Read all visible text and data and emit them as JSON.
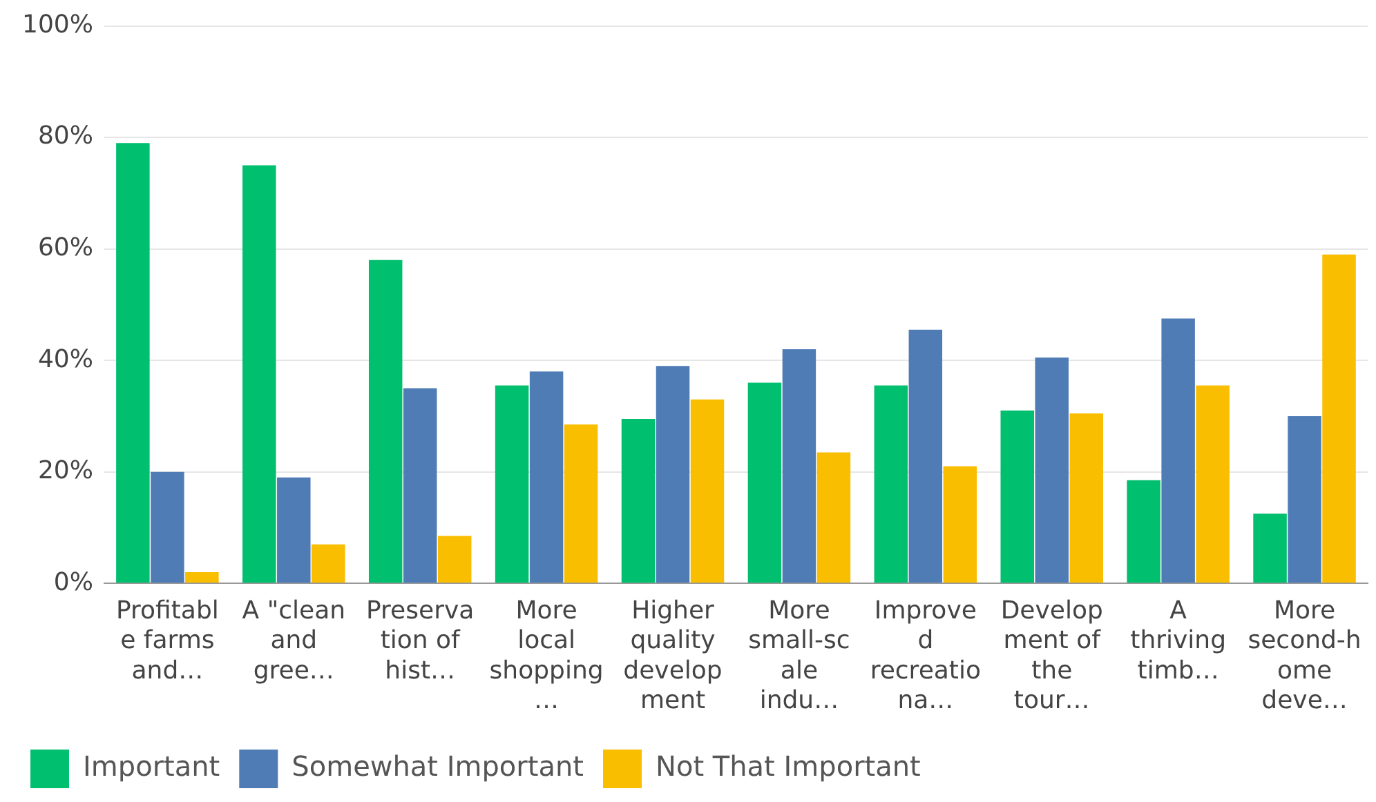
{
  "chart_data": {
    "type": "bar",
    "categories": [
      "Profitable farms and…",
      "A \"clean and gree…",
      "Preservation of hist…",
      "More local shopping…",
      "Higher quality development",
      "More small-scale indu…",
      "Improved recreationa…",
      "Development of the tour…",
      "A thriving timb…",
      "More second-home deve…"
    ],
    "series": [
      {
        "name": "Important",
        "color": "#00bf6f",
        "values": [
          79,
          75,
          58,
          35.5,
          29.5,
          36,
          35.5,
          31,
          18.5,
          12.5
        ]
      },
      {
        "name": "Somewhat Important",
        "color": "#507cb6",
        "values": [
          20,
          19,
          35,
          38,
          39,
          42,
          45.5,
          40.5,
          47.5,
          30
        ]
      },
      {
        "name": "Not That Important",
        "color": "#f9be00",
        "values": [
          2,
          7,
          8.5,
          28.5,
          33,
          23.5,
          21,
          30.5,
          35.5,
          59
        ]
      }
    ],
    "ylim": [
      0,
      100
    ],
    "yticks": [
      {
        "value": 0,
        "label": "0%"
      },
      {
        "value": 20,
        "label": "20%"
      },
      {
        "value": 40,
        "label": "40%"
      },
      {
        "value": 60,
        "label": "60%"
      },
      {
        "value": 80,
        "label": "80%"
      },
      {
        "value": 100,
        "label": "100%"
      }
    ],
    "grid": "y",
    "legend": "bottom left"
  }
}
